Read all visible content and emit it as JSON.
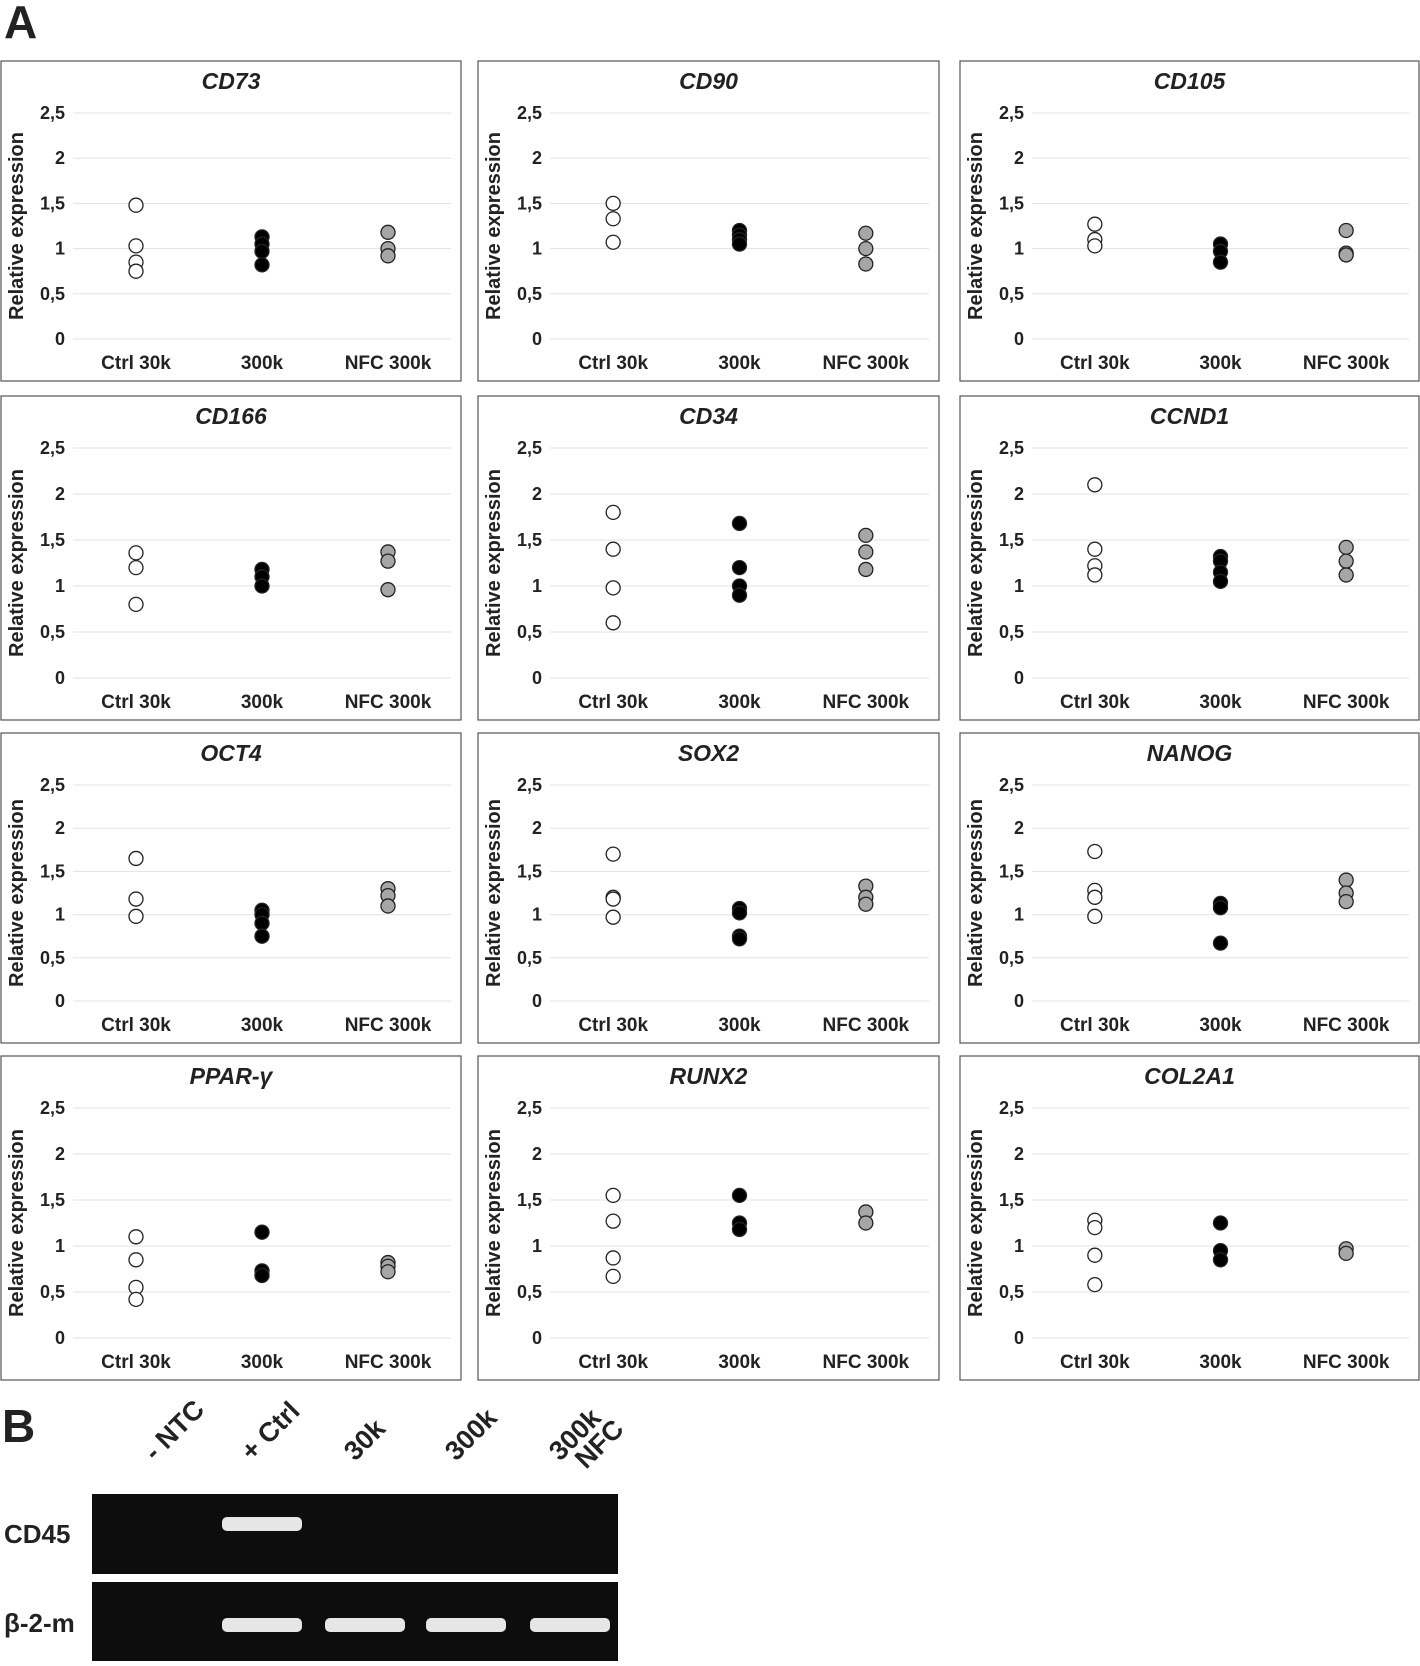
{
  "figure_labels": {
    "a": "A",
    "b": "B"
  },
  "chart_data": [
    {
      "type": "strip",
      "title": "CD73",
      "y_label": "Relative expression",
      "ylim": [
        0,
        2.5
      ],
      "yticks": [
        0,
        {
          "value": 0.5,
          "label": "0,5"
        },
        1,
        {
          "value": 1.5,
          "label": "1,5"
        },
        2,
        {
          "value": 2.5,
          "label": "2,5"
        }
      ],
      "grid": true,
      "groups": [
        {
          "category": "Ctrl 30k",
          "color": "#ffffff",
          "values": [
            1.48,
            1.03,
            0.85,
            0.75
          ]
        },
        {
          "category": "300k",
          "color": "#000000",
          "values": [
            1.13,
            1.05,
            0.97,
            0.82
          ]
        },
        {
          "category": "NFC 300k",
          "color": "#a6a6a6",
          "values": [
            1.18,
            1.0,
            0.92
          ]
        }
      ]
    },
    {
      "type": "strip",
      "title": "CD90",
      "y_label": "Relative expression",
      "ylim": [
        0,
        2.5
      ],
      "yticks": [
        0,
        {
          "value": 0.5,
          "label": "0,5"
        },
        1,
        {
          "value": 1.5,
          "label": "1,5"
        },
        2,
        {
          "value": 2.5,
          "label": "2,5"
        }
      ],
      "grid": true,
      "groups": [
        {
          "category": "Ctrl 30k",
          "color": "#ffffff",
          "values": [
            1.5,
            1.33,
            1.07
          ]
        },
        {
          "category": "300k",
          "color": "#000000",
          "values": [
            1.2,
            1.15,
            1.1,
            1.05
          ]
        },
        {
          "category": "NFC 300k",
          "color": "#a6a6a6",
          "values": [
            1.17,
            1.0,
            0.83
          ]
        }
      ]
    },
    {
      "type": "strip",
      "title": "CD105",
      "y_label": "Relative expression",
      "ylim": [
        0,
        2.5
      ],
      "yticks": [
        0,
        {
          "value": 0.5,
          "label": "0,5"
        },
        1,
        {
          "value": 1.5,
          "label": "1,5"
        },
        2,
        {
          "value": 2.5,
          "label": "2,5"
        }
      ],
      "grid": true,
      "groups": [
        {
          "category": "Ctrl 30k",
          "color": "#ffffff",
          "values": [
            1.27,
            1.1,
            1.03
          ]
        },
        {
          "category": "300k",
          "color": "#000000",
          "values": [
            1.05,
            0.97,
            0.85
          ]
        },
        {
          "category": "NFC 300k",
          "color": "#a6a6a6",
          "values": [
            1.2,
            0.95,
            0.93
          ]
        }
      ]
    },
    {
      "type": "strip",
      "title": "CD166",
      "y_label": "Relative expression",
      "ylim": [
        0,
        2.5
      ],
      "yticks": [
        0,
        {
          "value": 0.5,
          "label": "0,5"
        },
        1,
        {
          "value": 1.5,
          "label": "1,5"
        },
        2,
        {
          "value": 2.5,
          "label": "2,5"
        }
      ],
      "grid": true,
      "groups": [
        {
          "category": "Ctrl 30k",
          "color": "#ffffff",
          "values": [
            1.36,
            1.2,
            0.8
          ]
        },
        {
          "category": "300k",
          "color": "#000000",
          "values": [
            1.18,
            1.1,
            1.0
          ]
        },
        {
          "category": "NFC 300k",
          "color": "#a6a6a6",
          "values": [
            1.37,
            1.27,
            0.96
          ]
        }
      ]
    },
    {
      "type": "strip",
      "title": "CD34",
      "y_label": "Relative expression",
      "ylim": [
        0,
        2.5
      ],
      "yticks": [
        0,
        {
          "value": 0.5,
          "label": "0,5"
        },
        1,
        {
          "value": 1.5,
          "label": "1,5"
        },
        2,
        {
          "value": 2.5,
          "label": "2,5"
        }
      ],
      "grid": true,
      "groups": [
        {
          "category": "Ctrl 30k",
          "color": "#ffffff",
          "values": [
            1.8,
            1.4,
            0.98,
            0.6
          ]
        },
        {
          "category": "300k",
          "color": "#000000",
          "values": [
            1.68,
            1.2,
            1.0,
            0.9
          ]
        },
        {
          "category": "NFC 300k",
          "color": "#a6a6a6",
          "values": [
            1.55,
            1.37,
            1.18
          ]
        }
      ]
    },
    {
      "type": "strip",
      "title": "CCND1",
      "y_label": "Relative expression",
      "ylim": [
        0,
        2.5
      ],
      "yticks": [
        0,
        {
          "value": 0.5,
          "label": "0,5"
        },
        1,
        {
          "value": 1.5,
          "label": "1,5"
        },
        2,
        {
          "value": 2.5,
          "label": "2,5"
        }
      ],
      "grid": true,
      "groups": [
        {
          "category": "Ctrl 30k",
          "color": "#ffffff",
          "values": [
            2.1,
            1.4,
            1.22,
            1.12
          ]
        },
        {
          "category": "300k",
          "color": "#000000",
          "values": [
            1.32,
            1.27,
            1.15,
            1.05
          ]
        },
        {
          "category": "NFC 300k",
          "color": "#a6a6a6",
          "values": [
            1.42,
            1.27,
            1.12
          ]
        }
      ]
    },
    {
      "type": "strip",
      "title": "OCT4",
      "y_label": "Relative expression",
      "ylim": [
        0,
        2.5
      ],
      "yticks": [
        0,
        {
          "value": 0.5,
          "label": "0,5"
        },
        1,
        {
          "value": 1.5,
          "label": "1,5"
        },
        2,
        {
          "value": 2.5,
          "label": "2,5"
        }
      ],
      "grid": true,
      "groups": [
        {
          "category": "Ctrl 30k",
          "color": "#ffffff",
          "values": [
            1.65,
            1.18,
            0.98
          ]
        },
        {
          "category": "300k",
          "color": "#000000",
          "values": [
            1.05,
            1.0,
            0.9,
            0.75
          ]
        },
        {
          "category": "NFC 300k",
          "color": "#a6a6a6",
          "values": [
            1.3,
            1.22,
            1.1
          ]
        }
      ]
    },
    {
      "type": "strip",
      "title": "SOX2",
      "y_label": "Relative expression",
      "ylim": [
        0,
        2.5
      ],
      "yticks": [
        0,
        {
          "value": 0.5,
          "label": "0,5"
        },
        1,
        {
          "value": 1.5,
          "label": "1,5"
        },
        2,
        {
          "value": 2.5,
          "label": "2,5"
        }
      ],
      "grid": true,
      "groups": [
        {
          "category": "Ctrl 30k",
          "color": "#ffffff",
          "values": [
            1.7,
            1.2,
            1.18,
            0.97
          ]
        },
        {
          "category": "300k",
          "color": "#000000",
          "values": [
            1.07,
            1.02,
            0.75,
            0.72
          ]
        },
        {
          "category": "NFC 300k",
          "color": "#a6a6a6",
          "values": [
            1.33,
            1.2,
            1.12
          ]
        }
      ]
    },
    {
      "type": "strip",
      "title": "NANOG",
      "y_label": "Relative expression",
      "ylim": [
        0,
        2.5
      ],
      "yticks": [
        0,
        {
          "value": 0.5,
          "label": "0,5"
        },
        1,
        {
          "value": 1.5,
          "label": "1,5"
        },
        2,
        {
          "value": 2.5,
          "label": "2,5"
        }
      ],
      "grid": true,
      "groups": [
        {
          "category": "Ctrl 30k",
          "color": "#ffffff",
          "values": [
            1.73,
            1.28,
            1.2,
            0.98
          ]
        },
        {
          "category": "300k",
          "color": "#000000",
          "values": [
            1.13,
            1.08,
            0.67
          ]
        },
        {
          "category": "NFC 300k",
          "color": "#a6a6a6",
          "values": [
            1.4,
            1.25,
            1.15
          ]
        }
      ]
    },
    {
      "type": "strip",
      "title": "PPAR-γ",
      "y_label": "Relative expression",
      "ylim": [
        0,
        2.5
      ],
      "yticks": [
        0,
        {
          "value": 0.5,
          "label": "0,5"
        },
        1,
        {
          "value": 1.5,
          "label": "1,5"
        },
        2,
        {
          "value": 2.5,
          "label": "2,5"
        }
      ],
      "grid": true,
      "groups": [
        {
          "category": "Ctrl 30k",
          "color": "#ffffff",
          "values": [
            1.1,
            0.85,
            0.55,
            0.42
          ]
        },
        {
          "category": "300k",
          "color": "#000000",
          "values": [
            1.15,
            0.73,
            0.68
          ]
        },
        {
          "category": "NFC 300k",
          "color": "#a6a6a6",
          "values": [
            0.82,
            0.78,
            0.72
          ]
        }
      ]
    },
    {
      "type": "strip",
      "title": "RUNX2",
      "y_label": "Relative expression",
      "ylim": [
        0,
        2.5
      ],
      "yticks": [
        0,
        {
          "value": 0.5,
          "label": "0,5"
        },
        1,
        {
          "value": 1.5,
          "label": "1,5"
        },
        2,
        {
          "value": 2.5,
          "label": "2,5"
        }
      ],
      "grid": true,
      "groups": [
        {
          "category": "Ctrl 30k",
          "color": "#ffffff",
          "values": [
            1.55,
            1.27,
            0.87,
            0.67
          ]
        },
        {
          "category": "300k",
          "color": "#000000",
          "values": [
            1.55,
            1.25,
            1.18
          ]
        },
        {
          "category": "NFC 300k",
          "color": "#a6a6a6",
          "values": [
            1.37,
            1.25
          ]
        }
      ]
    },
    {
      "type": "strip",
      "title": "COL2A1",
      "y_label": "Relative expression",
      "ylim": [
        0,
        2.5
      ],
      "yticks": [
        0,
        {
          "value": 0.5,
          "label": "0,5"
        },
        1,
        {
          "value": 1.5,
          "label": "1,5"
        },
        2,
        {
          "value": 2.5,
          "label": "2,5"
        }
      ],
      "grid": true,
      "groups": [
        {
          "category": "Ctrl 30k",
          "color": "#ffffff",
          "values": [
            1.28,
            1.2,
            0.9,
            0.58
          ]
        },
        {
          "category": "300k",
          "color": "#000000",
          "values": [
            1.25,
            0.95,
            0.85
          ]
        },
        {
          "category": "NFC 300k",
          "color": "#a6a6a6",
          "values": [
            0.97,
            0.92
          ]
        }
      ]
    }
  ],
  "gel": {
    "lanes": [
      [
        "- NTC"
      ],
      [
        "+ Ctrl"
      ],
      [
        "30k"
      ],
      [
        "300k"
      ],
      [
        "300k",
        "NFC"
      ]
    ],
    "rows": [
      "CD45",
      "β-2-m"
    ]
  }
}
